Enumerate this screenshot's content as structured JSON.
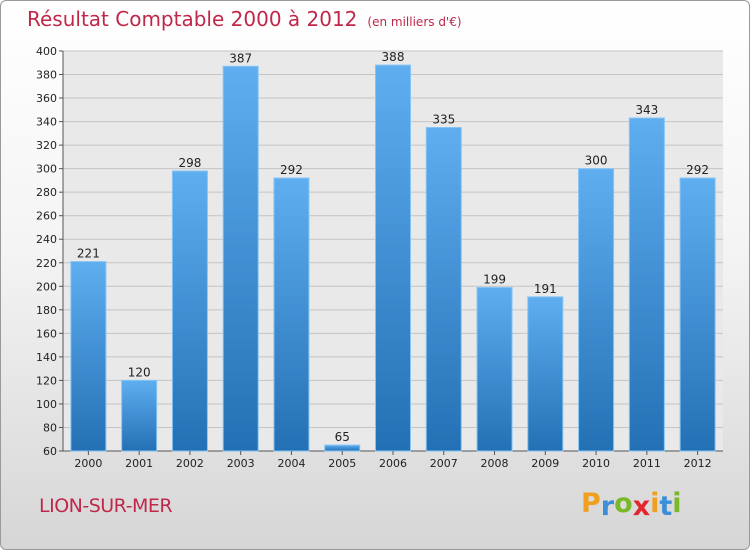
{
  "title": "Résultat Comptable 2000 à 2012",
  "subtitle": "(en milliers d'€)",
  "place": "LION-SUR-MER",
  "brand": {
    "letters": [
      "P",
      "r",
      "o",
      "x",
      "i",
      "t",
      "i"
    ],
    "colors": [
      "#f0a020",
      "#3c8fd6",
      "#79b928",
      "#e4262f",
      "#f0a020",
      "#3c8fd6",
      "#79b928"
    ]
  },
  "colors": {
    "bar_light": "#5eaef0",
    "bar_dark": "#2470b4",
    "grid": "#c4c4c4",
    "plot_bg": "#e9e9e9"
  },
  "chart_data": {
    "type": "bar",
    "title": "Résultat Comptable 2000 à 2012",
    "subtitle": "(en milliers d'€)",
    "xlabel": "",
    "ylabel": "",
    "categories": [
      "2000",
      "2001",
      "2002",
      "2003",
      "2004",
      "2005",
      "2006",
      "2007",
      "2008",
      "2009",
      "2010",
      "2011",
      "2012"
    ],
    "values": [
      221,
      120,
      298,
      387,
      292,
      65,
      388,
      335,
      199,
      191,
      300,
      343,
      292
    ],
    "ylim": [
      60,
      400
    ],
    "yticks": [
      60,
      80,
      100,
      120,
      140,
      160,
      180,
      200,
      220,
      240,
      260,
      280,
      300,
      320,
      340,
      360,
      380,
      400
    ],
    "grid": true,
    "legend": "none"
  }
}
